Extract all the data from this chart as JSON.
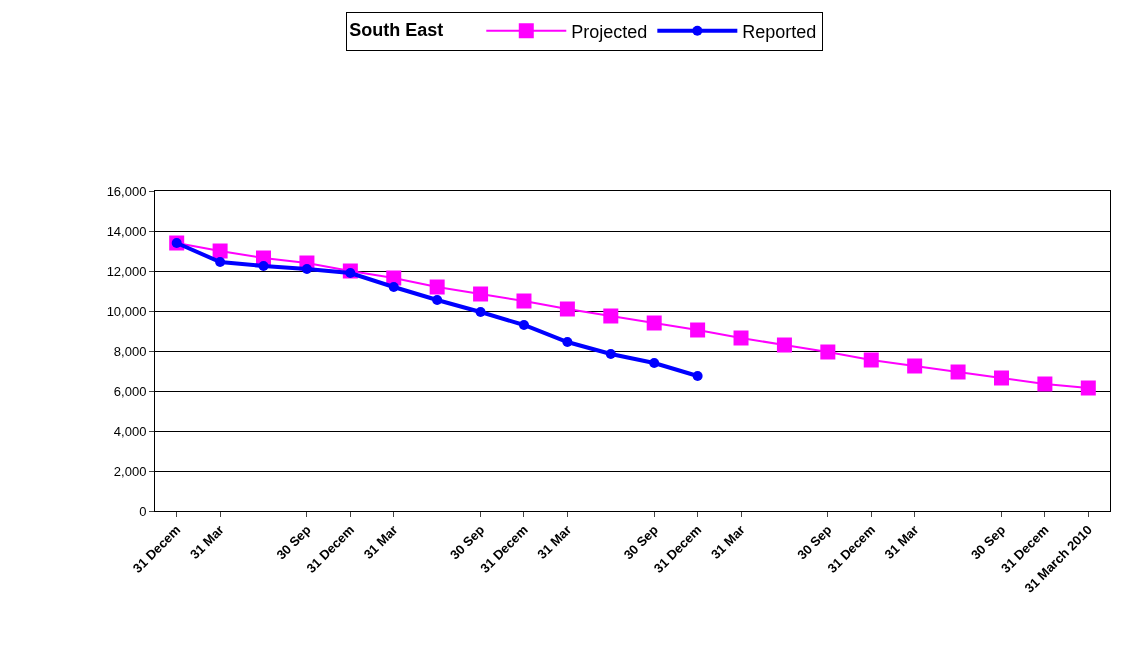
{
  "chart_data": {
    "type": "line",
    "legend_title": "South East",
    "categories": [
      "31 Decem",
      "31 Mar",
      null,
      "30 Sep",
      "31 Decem",
      "31 Mar",
      null,
      "30 Sep",
      "31 Decem",
      "31 Mar",
      null,
      "30 Sep",
      "31 Decem",
      "31 Mar",
      null,
      "30 Sep",
      "31 Decem",
      "31 Mar",
      null,
      "30 Sep",
      "31 Decem",
      "31 March 2010"
    ],
    "series": [
      {
        "name": "Projected",
        "color": "#ff00ff",
        "marker": "square",
        "values": [
          13400,
          13000,
          12650,
          12400,
          12000,
          11650,
          11200,
          10850,
          10500,
          10100,
          9750,
          9400,
          9050,
          8650,
          8300,
          7950,
          7550,
          7250,
          6950,
          6650,
          6350,
          6150
        ]
      },
      {
        "name": "Reported",
        "color": "#0000ff",
        "marker": "circle",
        "values": [
          13400,
          12450,
          12250,
          12100,
          11900,
          11200,
          10550,
          9950,
          9300,
          8450,
          7850,
          7400,
          6750,
          null,
          null,
          null,
          null,
          null,
          null,
          null,
          null,
          null
        ]
      }
    ],
    "ylim": [
      0,
      16000
    ],
    "yticks": [
      {
        "value": 0,
        "label": "0"
      },
      {
        "value": 2000,
        "label": "2,000"
      },
      {
        "value": 4000,
        "label": "4,000"
      },
      {
        "value": 6000,
        "label": "6,000"
      },
      {
        "value": 8000,
        "label": "8,000"
      },
      {
        "value": 10000,
        "label": "10,000"
      },
      {
        "value": 12000,
        "label": "12,000"
      },
      {
        "value": 14000,
        "label": "14,000"
      },
      {
        "value": 16000,
        "label": "16,000"
      }
    ],
    "grid": "y",
    "legend": "top"
  }
}
